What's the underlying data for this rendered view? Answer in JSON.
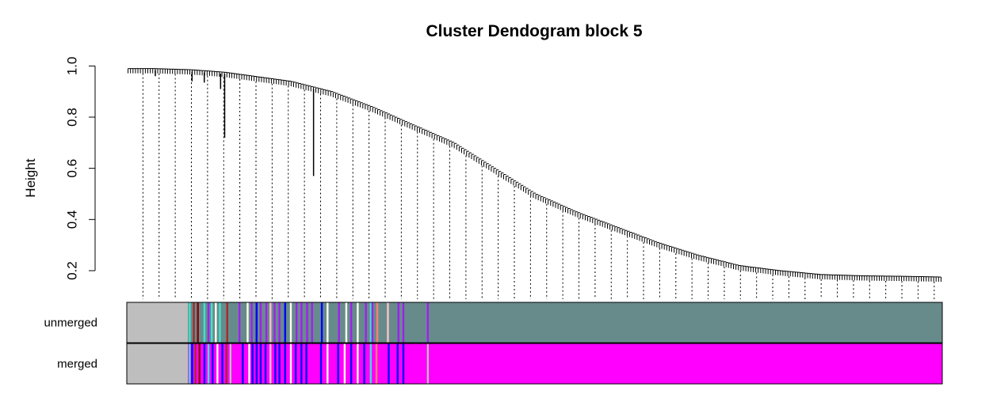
{
  "chart_data": {
    "type": "dendrogram",
    "title": "Cluster Dendogram block 5",
    "ylabel": "Height",
    "xlabel": "",
    "ylim": [
      0.1,
      1.0
    ],
    "yticks": [
      0.2,
      0.4,
      0.6,
      0.8,
      1.0
    ],
    "ytick_labels": [
      "0.2",
      "0.4",
      "0.6",
      "0.8",
      "1.0"
    ],
    "merge_height_profile": {
      "x_fraction": [
        0.0,
        0.03,
        0.08,
        0.12,
        0.2,
        0.25,
        0.3,
        0.35,
        0.4,
        0.45,
        0.5,
        0.55,
        0.6,
        0.65,
        0.7,
        0.75,
        0.8,
        0.85,
        0.9,
        0.95,
        1.0
      ],
      "height": [
        0.99,
        0.99,
        0.985,
        0.975,
        0.94,
        0.9,
        0.84,
        0.77,
        0.7,
        0.6,
        0.5,
        0.43,
        0.37,
        0.31,
        0.26,
        0.22,
        0.2,
        0.185,
        0.18,
        0.178,
        0.175
      ]
    },
    "notable_drops": [
      {
        "x_fraction": 0.035,
        "bottom": 0.96
      },
      {
        "x_fraction": 0.08,
        "bottom": 0.94
      },
      {
        "x_fraction": 0.095,
        "bottom": 0.935
      },
      {
        "x_fraction": 0.115,
        "bottom": 0.91
      },
      {
        "x_fraction": 0.12,
        "bottom": 0.72
      },
      {
        "x_fraction": 0.229,
        "bottom": 0.57
      }
    ],
    "color_rows": [
      {
        "label": "unmerged",
        "base_color": "#678B8B",
        "grey_end": 0.075
      },
      {
        "label": "merged",
        "base_color": "#FF00FF",
        "grey_end": 0.075
      }
    ],
    "colors": {
      "grey": "#BEBEBE",
      "turquoise": "#40E0D0",
      "blue": "#0000FF",
      "brown": "#A52A2A",
      "purple": "#A020F0",
      "pink": "#FFC0CB",
      "ivory": "#FFFFF0",
      "salmon": "#FA8072",
      "darkred": "#8B0000",
      "white": "#FFFFFF"
    },
    "stripes_unmerged": [
      {
        "x": 0.076,
        "c": "turquoise"
      },
      {
        "x": 0.081,
        "c": "brown"
      },
      {
        "x": 0.086,
        "c": "darkred"
      },
      {
        "x": 0.094,
        "c": "turquoise"
      },
      {
        "x": 0.099,
        "c": "purple"
      },
      {
        "x": 0.103,
        "c": "turquoise"
      },
      {
        "x": 0.108,
        "c": "ivory"
      },
      {
        "x": 0.113,
        "c": "turquoise"
      },
      {
        "x": 0.122,
        "c": "brown"
      },
      {
        "x": 0.137,
        "c": "purple"
      },
      {
        "x": 0.147,
        "c": "ivory"
      },
      {
        "x": 0.152,
        "c": "purple"
      },
      {
        "x": 0.158,
        "c": "blue"
      },
      {
        "x": 0.163,
        "c": "purple"
      },
      {
        "x": 0.17,
        "c": "purple"
      },
      {
        "x": 0.175,
        "c": "pink"
      },
      {
        "x": 0.18,
        "c": "purple"
      },
      {
        "x": 0.186,
        "c": "purple"
      },
      {
        "x": 0.193,
        "c": "blue"
      },
      {
        "x": 0.2,
        "c": "ivory"
      },
      {
        "x": 0.207,
        "c": "purple"
      },
      {
        "x": 0.213,
        "c": "purple"
      },
      {
        "x": 0.22,
        "c": "purple"
      },
      {
        "x": 0.226,
        "c": "purple"
      },
      {
        "x": 0.238,
        "c": "blue"
      },
      {
        "x": 0.245,
        "c": "ivory"
      },
      {
        "x": 0.259,
        "c": "purple"
      },
      {
        "x": 0.268,
        "c": "ivory"
      },
      {
        "x": 0.274,
        "c": "purple"
      },
      {
        "x": 0.282,
        "c": "ivory"
      },
      {
        "x": 0.292,
        "c": "purple"
      },
      {
        "x": 0.298,
        "c": "turquoise"
      },
      {
        "x": 0.3,
        "c": "purple"
      },
      {
        "x": 0.306,
        "c": "salmon"
      },
      {
        "x": 0.319,
        "c": "pink"
      },
      {
        "x": 0.332,
        "c": "purple"
      },
      {
        "x": 0.338,
        "c": "purple"
      },
      {
        "x": 0.368,
        "c": "purple"
      }
    ],
    "stripes_merged": [
      {
        "x": 0.076,
        "c": "turquoise"
      },
      {
        "x": 0.079,
        "c": "blue"
      },
      {
        "x": 0.083,
        "c": "brown"
      },
      {
        "x": 0.088,
        "c": "darkred"
      },
      {
        "x": 0.094,
        "c": "blue"
      },
      {
        "x": 0.099,
        "c": "turquoise"
      },
      {
        "x": 0.104,
        "c": "blue"
      },
      {
        "x": 0.11,
        "c": "ivory"
      },
      {
        "x": 0.116,
        "c": "blue"
      },
      {
        "x": 0.121,
        "c": "brown"
      },
      {
        "x": 0.126,
        "c": "grey"
      },
      {
        "x": 0.141,
        "c": "blue"
      },
      {
        "x": 0.149,
        "c": "ivory"
      },
      {
        "x": 0.153,
        "c": "blue"
      },
      {
        "x": 0.158,
        "c": "blue"
      },
      {
        "x": 0.163,
        "c": "blue"
      },
      {
        "x": 0.169,
        "c": "blue"
      },
      {
        "x": 0.175,
        "c": "pink"
      },
      {
        "x": 0.181,
        "c": "blue"
      },
      {
        "x": 0.186,
        "c": "blue"
      },
      {
        "x": 0.193,
        "c": "blue"
      },
      {
        "x": 0.2,
        "c": "ivory"
      },
      {
        "x": 0.206,
        "c": "blue"
      },
      {
        "x": 0.213,
        "c": "blue"
      },
      {
        "x": 0.219,
        "c": "blue"
      },
      {
        "x": 0.237,
        "c": "blue"
      },
      {
        "x": 0.245,
        "c": "white"
      },
      {
        "x": 0.258,
        "c": "blue"
      },
      {
        "x": 0.266,
        "c": "ivory"
      },
      {
        "x": 0.274,
        "c": "blue"
      },
      {
        "x": 0.282,
        "c": "ivory"
      },
      {
        "x": 0.29,
        "c": "blue"
      },
      {
        "x": 0.298,
        "c": "turquoise"
      },
      {
        "x": 0.305,
        "c": "salmon"
      },
      {
        "x": 0.32,
        "c": "blue"
      },
      {
        "x": 0.331,
        "c": "blue"
      },
      {
        "x": 0.338,
        "c": "blue"
      },
      {
        "x": 0.368,
        "c": "grey"
      }
    ]
  }
}
